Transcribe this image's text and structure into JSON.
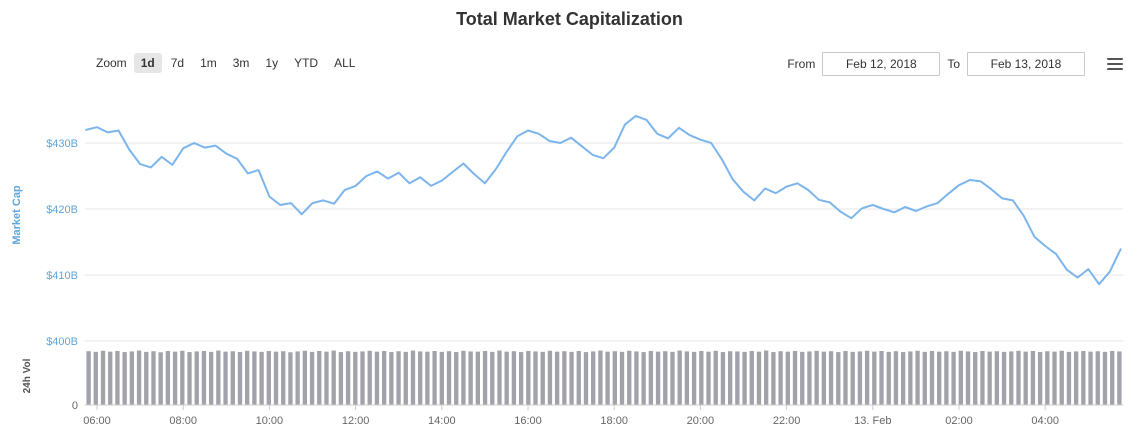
{
  "page": {
    "title": "Total Market Capitalization"
  },
  "toolbar": {
    "zoom_label": "Zoom",
    "zoom_buttons": [
      {
        "label": "1d",
        "selected": true
      },
      {
        "label": "7d",
        "selected": false
      },
      {
        "label": "1m",
        "selected": false
      },
      {
        "label": "3m",
        "selected": false
      },
      {
        "label": "1y",
        "selected": false
      },
      {
        "label": "YTD",
        "selected": false
      },
      {
        "label": "ALL",
        "selected": false
      }
    ],
    "from_label": "From",
    "from_value": "Feb 12, 2018",
    "to_label": "To",
    "to_value": "Feb 13, 2018",
    "menu_icon": "hamburger-menu-icon"
  },
  "colors": {
    "line": "#7cb5ec",
    "axis_label_blue": "#5fa6dc",
    "volume_bar": "#a2a2aa",
    "grid": "#e6e6e6",
    "axis_line": "#cccccc",
    "tick_text": "#666666",
    "vol_text": "#555555"
  },
  "chart_data": {
    "type": "line",
    "title": "Total Market Capitalization",
    "x_unit": "hours since Feb 12, 2018 00:00",
    "x_range": [
      5.75,
      29.75
    ],
    "grid": true,
    "legend": "none",
    "axes": {
      "market_cap": {
        "label": "Market Cap",
        "range": [
          399,
          436
        ],
        "ticks": [
          {
            "v": 400,
            "label": "$400B"
          },
          {
            "v": 410,
            "label": "$410B"
          },
          {
            "v": 420,
            "label": "$420B"
          },
          {
            "v": 430,
            "label": "$430B"
          }
        ]
      },
      "volume": {
        "label": "24h Vol",
        "range": [
          0,
          28
        ],
        "ticks": [
          {
            "v": 0,
            "label": "0"
          }
        ]
      },
      "x_ticks": [
        {
          "t": 6,
          "label": "06:00"
        },
        {
          "t": 8,
          "label": "08:00"
        },
        {
          "t": 10,
          "label": "10:00"
        },
        {
          "t": 12,
          "label": "12:00"
        },
        {
          "t": 14,
          "label": "14:00"
        },
        {
          "t": 16,
          "label": "16:00"
        },
        {
          "t": 18,
          "label": "18:00"
        },
        {
          "t": 20,
          "label": "20:00"
        },
        {
          "t": 22,
          "label": "22:00"
        },
        {
          "t": 24,
          "label": "13. Feb"
        },
        {
          "t": 26,
          "label": "02:00"
        },
        {
          "t": 28,
          "label": "04:00"
        }
      ]
    },
    "series": [
      {
        "name": "Market Cap ($B)",
        "type": "line",
        "x_start": 5.75,
        "x_step": 0.25,
        "values": [
          432.0,
          432.4,
          431.6,
          431.9,
          429.0,
          426.8,
          426.3,
          427.9,
          426.7,
          429.2,
          430.0,
          429.3,
          429.6,
          428.4,
          427.6,
          425.4,
          425.9,
          421.9,
          420.6,
          420.9,
          419.2,
          420.9,
          421.3,
          420.8,
          422.9,
          423.5,
          425.0,
          425.7,
          424.6,
          425.5,
          423.9,
          424.8,
          423.5,
          424.3,
          425.6,
          426.9,
          425.3,
          423.9,
          426.0,
          428.6,
          431.0,
          431.9,
          431.4,
          430.3,
          430.0,
          430.8,
          429.5,
          428.2,
          427.7,
          429.3,
          432.8,
          434.1,
          433.5,
          431.4,
          430.7,
          432.3,
          431.2,
          430.5,
          430.0,
          427.5,
          424.5,
          422.6,
          421.3,
          423.1,
          422.4,
          423.4,
          423.9,
          422.9,
          421.4,
          421.0,
          419.6,
          418.6,
          420.1,
          420.6,
          420.0,
          419.5,
          420.3,
          419.7,
          420.4,
          420.9,
          422.3,
          423.6,
          424.4,
          424.2,
          423.0,
          421.6,
          421.3,
          419.0,
          415.8,
          414.4,
          413.2,
          410.8,
          409.6,
          410.9,
          408.6,
          410.5,
          413.9
        ]
      },
      {
        "name": "24h Vol ($B)",
        "type": "column",
        "x_start": 5.75,
        "x_end": 29.75,
        "values": [
          25.1,
          24.8,
          25.3,
          24.9,
          25.2,
          24.7,
          25.0,
          25.4,
          24.8,
          25.1,
          24.6,
          25.2,
          24.9,
          25.3,
          24.7,
          25.0,
          25.2,
          24.8,
          25.4,
          24.9,
          25.1,
          24.7,
          25.3,
          25.0,
          24.8,
          25.2,
          24.9,
          25.1,
          24.6,
          25.0,
          25.3,
          24.8,
          25.2,
          24.9,
          25.4,
          24.7,
          25.1,
          24.8,
          25.0,
          25.3,
          24.9,
          25.2,
          24.7,
          25.1,
          24.8,
          25.4,
          25.0,
          24.9,
          25.2,
          24.8,
          25.1,
          24.7,
          25.3,
          25.0,
          24.9,
          25.2,
          24.8,
          25.4,
          24.9,
          25.1,
          24.7,
          25.2,
          25.0,
          24.8,
          25.3,
          24.9,
          25.1,
          24.8,
          25.2,
          24.7,
          25.0,
          25.4,
          24.9,
          25.1,
          24.8,
          25.3,
          25.0,
          24.7,
          25.2,
          24.9,
          25.1,
          24.8,
          25.4,
          25.0,
          24.8,
          25.2,
          24.9,
          25.3,
          24.7,
          25.1,
          25.0,
          24.8,
          25.2,
          24.9,
          25.4,
          24.7,
          25.1,
          24.9,
          25.2,
          24.8,
          25.0,
          25.3,
          24.9,
          25.1,
          24.7,
          25.2,
          24.8,
          25.0,
          25.3,
          24.9,
          25.2,
          24.8,
          25.1,
          24.7,
          25.0,
          25.3,
          24.8,
          25.2,
          24.9,
          25.1,
          24.8,
          25.3,
          25.0,
          24.7,
          25.2,
          24.9,
          25.1,
          24.8,
          25.0,
          25.3,
          24.9,
          25.2,
          24.7,
          25.1,
          24.9,
          25.3,
          24.8,
          25.0,
          25.2,
          24.9,
          25.1,
          24.8,
          25.2,
          25.0
        ]
      }
    ]
  }
}
